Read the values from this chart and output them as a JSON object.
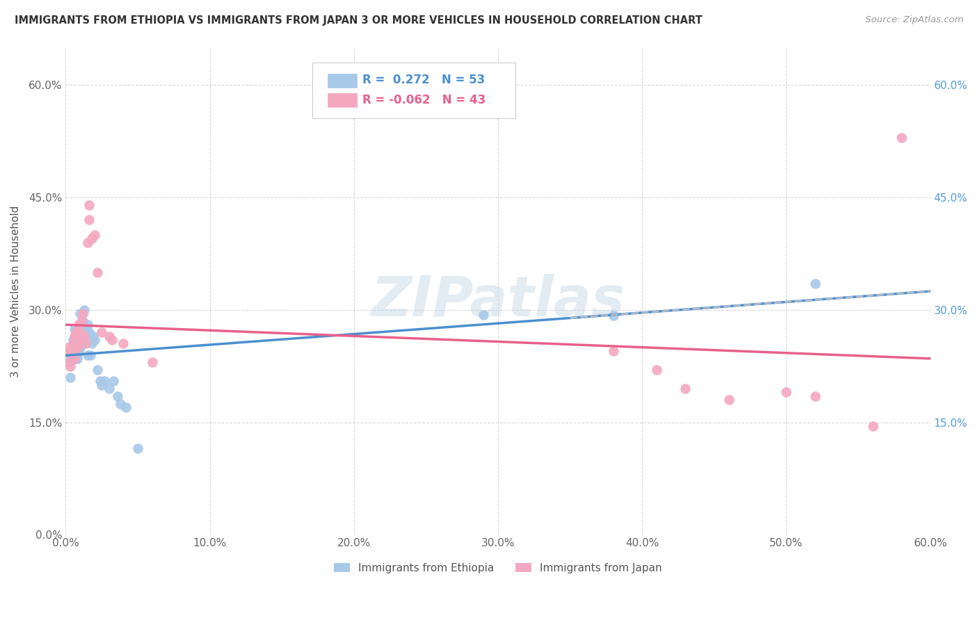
{
  "title": "IMMIGRANTS FROM ETHIOPIA VS IMMIGRANTS FROM JAPAN 3 OR MORE VEHICLES IN HOUSEHOLD CORRELATION CHART",
  "source": "Source: ZipAtlas.com",
  "ylabel": "3 or more Vehicles in Household",
  "x_min": 0.0,
  "x_max": 0.6,
  "y_min": 0.0,
  "y_max": 0.65,
  "ethiopia_R": 0.272,
  "ethiopia_N": 53,
  "japan_R": -0.062,
  "japan_N": 43,
  "ethiopia_color": "#a8c8e8",
  "japan_color": "#f4a8c0",
  "ethiopia_line_color": "#4a90d0",
  "japan_line_color": "#e8608a",
  "dashed_line_color": "#b0b8c8",
  "grid_color": "#d8d8d8",
  "background_color": "#ffffff",
  "watermark": "ZIPatlas",
  "ethiopia_x": [
    0.002,
    0.003,
    0.003,
    0.004,
    0.004,
    0.004,
    0.005,
    0.005,
    0.005,
    0.006,
    0.006,
    0.006,
    0.007,
    0.007,
    0.007,
    0.007,
    0.008,
    0.008,
    0.008,
    0.008,
    0.009,
    0.009,
    0.009,
    0.01,
    0.01,
    0.01,
    0.011,
    0.011,
    0.012,
    0.012,
    0.013,
    0.013,
    0.014,
    0.015,
    0.015,
    0.016,
    0.017,
    0.018,
    0.019,
    0.02,
    0.022,
    0.024,
    0.025,
    0.027,
    0.03,
    0.033,
    0.036,
    0.038,
    0.042,
    0.05,
    0.29,
    0.38,
    0.52
  ],
  "ethiopia_y": [
    0.23,
    0.24,
    0.21,
    0.245,
    0.235,
    0.25,
    0.245,
    0.235,
    0.26,
    0.235,
    0.24,
    0.275,
    0.235,
    0.24,
    0.25,
    0.27,
    0.235,
    0.245,
    0.255,
    0.24,
    0.245,
    0.26,
    0.25,
    0.25,
    0.265,
    0.295,
    0.27,
    0.255,
    0.26,
    0.285,
    0.265,
    0.3,
    0.275,
    0.28,
    0.24,
    0.27,
    0.24,
    0.255,
    0.265,
    0.26,
    0.22,
    0.205,
    0.2,
    0.205,
    0.195,
    0.205,
    0.185,
    0.175,
    0.17,
    0.115,
    0.293,
    0.292,
    0.335
  ],
  "japan_x": [
    0.001,
    0.002,
    0.003,
    0.003,
    0.004,
    0.004,
    0.005,
    0.005,
    0.006,
    0.006,
    0.006,
    0.007,
    0.007,
    0.007,
    0.008,
    0.008,
    0.009,
    0.009,
    0.01,
    0.01,
    0.011,
    0.012,
    0.013,
    0.014,
    0.015,
    0.016,
    0.016,
    0.018,
    0.02,
    0.022,
    0.025,
    0.03,
    0.032,
    0.04,
    0.06,
    0.38,
    0.41,
    0.43,
    0.46,
    0.5,
    0.52,
    0.56,
    0.58
  ],
  "japan_y": [
    0.25,
    0.23,
    0.245,
    0.225,
    0.25,
    0.24,
    0.255,
    0.245,
    0.265,
    0.25,
    0.235,
    0.265,
    0.27,
    0.25,
    0.25,
    0.265,
    0.26,
    0.28,
    0.26,
    0.27,
    0.285,
    0.295,
    0.265,
    0.255,
    0.39,
    0.44,
    0.42,
    0.395,
    0.4,
    0.35,
    0.27,
    0.265,
    0.26,
    0.255,
    0.23,
    0.245,
    0.22,
    0.195,
    0.18,
    0.19,
    0.185,
    0.145,
    0.53
  ]
}
